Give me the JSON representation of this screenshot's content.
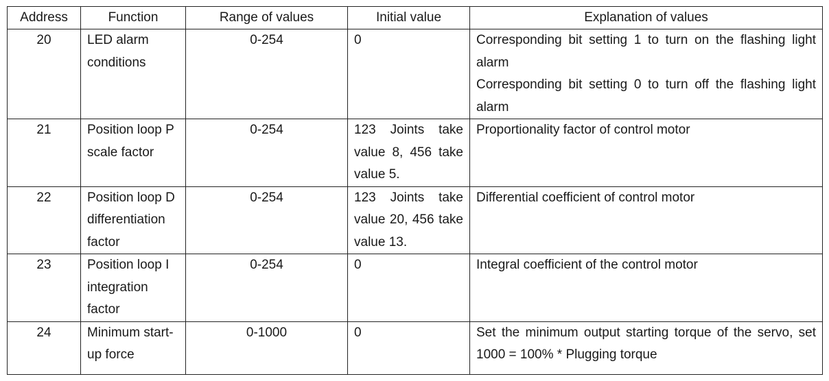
{
  "table": {
    "headers": {
      "address": "Address",
      "function": "Function",
      "range": "Range of values",
      "initial": "Initial value",
      "explanation": "Explanation of values"
    },
    "rows": [
      {
        "address": "20",
        "function": "LED alarm conditions",
        "range": "0-254",
        "initial": "0",
        "explanation": [
          "Corresponding bit setting 1 to turn on the flashing light alarm",
          "Corresponding bit setting 0 to turn off the flashing light alarm"
        ]
      },
      {
        "address": "21",
        "function": "Position loop P scale factor",
        "range": "0-254",
        "initial": "123 Joints take value 8, 456 take value 5.",
        "explanation": [
          "Proportionality factor of control motor"
        ]
      },
      {
        "address": "22",
        "function": "Position loop D differentiation factor",
        "range": "0-254",
        "initial": "123 Joints take value 20, 456 take value 13.",
        "explanation": [
          "Differential coefficient of control motor"
        ]
      },
      {
        "address": "23",
        "function": "Position loop I integration factor",
        "range": "0-254",
        "initial": "0",
        "explanation": [
          "Integral coefficient of the control motor"
        ]
      },
      {
        "address": "24",
        "function": "Minimum start-up force",
        "range": "0-1000",
        "initial": "0",
        "explanation": [
          "Set the minimum output starting torque of the servo, set 1000 = 100% * Plugging torque"
        ]
      }
    ]
  }
}
